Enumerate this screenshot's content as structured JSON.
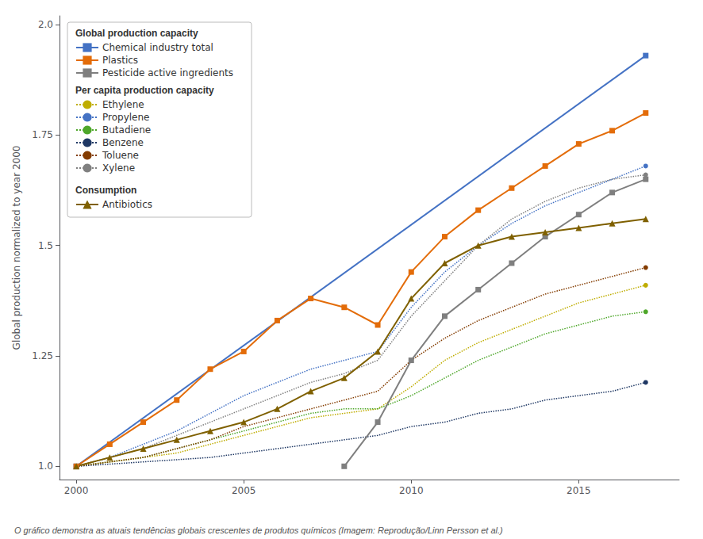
{
  "chart_data": {
    "type": "line",
    "ylabel": "Global production normalized to year 2000",
    "caption": "O gráfico demonstra as atuais tendências globais crescentes de produtos químicos (Imagem: Reprodução/Linn Persson et al.)",
    "xlim": [
      1999.5,
      2018.0
    ],
    "ylim": [
      0.97,
      2.02
    ],
    "xticks": [
      2000,
      2005,
      2010,
      2015
    ],
    "yticks": [
      {
        "value": 1.0,
        "label": "1.0"
      },
      1.25,
      1.5,
      1.75,
      {
        "value": 2.0,
        "label": "2.0"
      }
    ],
    "grid": false,
    "legend": "upper left",
    "series": [
      {
        "name": "Chemical industry total",
        "group": "Global production capacity",
        "color": "#4472C4",
        "marker": "square",
        "line_style": "solid",
        "x": [
          2000,
          2017
        ],
        "values": [
          1.0,
          1.93
        ]
      },
      {
        "name": "Plastics",
        "group": "Global production capacity",
        "color": "#E36C09",
        "marker": "square",
        "line_style": "solid",
        "x": [
          2000,
          2001,
          2002,
          2003,
          2004,
          2005,
          2006,
          2007,
          2008,
          2009,
          2010,
          2011,
          2012,
          2013,
          2014,
          2015,
          2016,
          2017
        ],
        "values": [
          1.0,
          1.05,
          1.1,
          1.15,
          1.22,
          1.26,
          1.33,
          1.38,
          1.36,
          1.32,
          1.44,
          1.52,
          1.58,
          1.63,
          1.68,
          1.73,
          1.76,
          1.8
        ]
      },
      {
        "name": "Pesticide active ingredients",
        "group": "Global production capacity",
        "color": "#7F7F7F",
        "marker": "square",
        "line_style": "solid",
        "x": [
          2008,
          2009,
          2010,
          2011,
          2012,
          2013,
          2014,
          2015,
          2016,
          2017
        ],
        "values": [
          1.0,
          1.1,
          1.24,
          1.34,
          1.4,
          1.46,
          1.52,
          1.57,
          1.62,
          1.65
        ]
      },
      {
        "name": "Ethylene",
        "group": "Per capita production capacity",
        "color": "#BFAD00",
        "marker": "circle",
        "line_style": "dotted",
        "x": [
          2000,
          2001,
          2002,
          2003,
          2004,
          2005,
          2006,
          2007,
          2008,
          2009,
          2010,
          2011,
          2012,
          2013,
          2014,
          2015,
          2016,
          2017
        ],
        "values": [
          1.0,
          1.01,
          1.02,
          1.03,
          1.05,
          1.07,
          1.09,
          1.11,
          1.12,
          1.13,
          1.18,
          1.24,
          1.28,
          1.31,
          1.34,
          1.37,
          1.39,
          1.41
        ]
      },
      {
        "name": "Propylene",
        "group": "Per capita production capacity",
        "color": "#4472C4",
        "marker": "circle",
        "line_style": "dotted",
        "x": [
          2000,
          2001,
          2002,
          2003,
          2004,
          2005,
          2006,
          2007,
          2008,
          2009,
          2010,
          2011,
          2012,
          2013,
          2014,
          2015,
          2016,
          2017
        ],
        "values": [
          1.0,
          1.02,
          1.05,
          1.08,
          1.12,
          1.16,
          1.19,
          1.22,
          1.24,
          1.26,
          1.36,
          1.44,
          1.5,
          1.55,
          1.59,
          1.62,
          1.65,
          1.68
        ]
      },
      {
        "name": "Butadiene",
        "group": "Per capita production capacity",
        "color": "#4EA72A",
        "marker": "circle",
        "line_style": "dotted",
        "x": [
          2000,
          2001,
          2002,
          2003,
          2004,
          2005,
          2006,
          2007,
          2008,
          2009,
          2010,
          2011,
          2012,
          2013,
          2014,
          2015,
          2016,
          2017
        ],
        "values": [
          1.0,
          1.01,
          1.02,
          1.04,
          1.06,
          1.08,
          1.1,
          1.12,
          1.13,
          1.13,
          1.16,
          1.2,
          1.24,
          1.27,
          1.3,
          1.32,
          1.34,
          1.35
        ]
      },
      {
        "name": "Benzene",
        "group": "Per capita production capacity",
        "color": "#1F3864",
        "marker": "circle",
        "line_style": "dotted",
        "x": [
          2000,
          2001,
          2002,
          2003,
          2004,
          2005,
          2006,
          2007,
          2008,
          2009,
          2010,
          2011,
          2012,
          2013,
          2014,
          2015,
          2016,
          2017
        ],
        "values": [
          1.0,
          1.005,
          1.01,
          1.015,
          1.02,
          1.03,
          1.04,
          1.05,
          1.06,
          1.07,
          1.09,
          1.1,
          1.12,
          1.13,
          1.15,
          1.16,
          1.17,
          1.19
        ]
      },
      {
        "name": "Toluene",
        "group": "Per capita production capacity",
        "color": "#833C00",
        "marker": "circle",
        "line_style": "dotted",
        "x": [
          2000,
          2001,
          2002,
          2003,
          2004,
          2005,
          2006,
          2007,
          2008,
          2009,
          2010,
          2011,
          2012,
          2013,
          2014,
          2015,
          2016,
          2017
        ],
        "values": [
          1.0,
          1.01,
          1.02,
          1.04,
          1.06,
          1.09,
          1.11,
          1.13,
          1.15,
          1.17,
          1.24,
          1.29,
          1.33,
          1.36,
          1.39,
          1.41,
          1.43,
          1.45
        ]
      },
      {
        "name": "Xylene",
        "group": "Per capita production capacity",
        "color": "#808080",
        "marker": "circle",
        "line_style": "dotted",
        "x": [
          2000,
          2001,
          2002,
          2003,
          2004,
          2005,
          2006,
          2007,
          2008,
          2009,
          2010,
          2011,
          2012,
          2013,
          2014,
          2015,
          2016,
          2017
        ],
        "values": [
          1.0,
          1.02,
          1.04,
          1.07,
          1.1,
          1.13,
          1.16,
          1.19,
          1.21,
          1.24,
          1.34,
          1.42,
          1.5,
          1.56,
          1.6,
          1.63,
          1.65,
          1.66
        ]
      },
      {
        "name": "Antibiotics",
        "group": "Consumption",
        "color": "#7F6000",
        "marker": "triangle",
        "line_style": "solid",
        "x": [
          2000,
          2001,
          2002,
          2003,
          2004,
          2005,
          2006,
          2007,
          2008,
          2009,
          2010,
          2011,
          2012,
          2013,
          2014,
          2015,
          2016,
          2017
        ],
        "values": [
          1.0,
          1.02,
          1.04,
          1.06,
          1.08,
          1.1,
          1.13,
          1.17,
          1.2,
          1.26,
          1.38,
          1.46,
          1.5,
          1.52,
          1.53,
          1.54,
          1.55,
          1.56
        ]
      }
    ]
  }
}
